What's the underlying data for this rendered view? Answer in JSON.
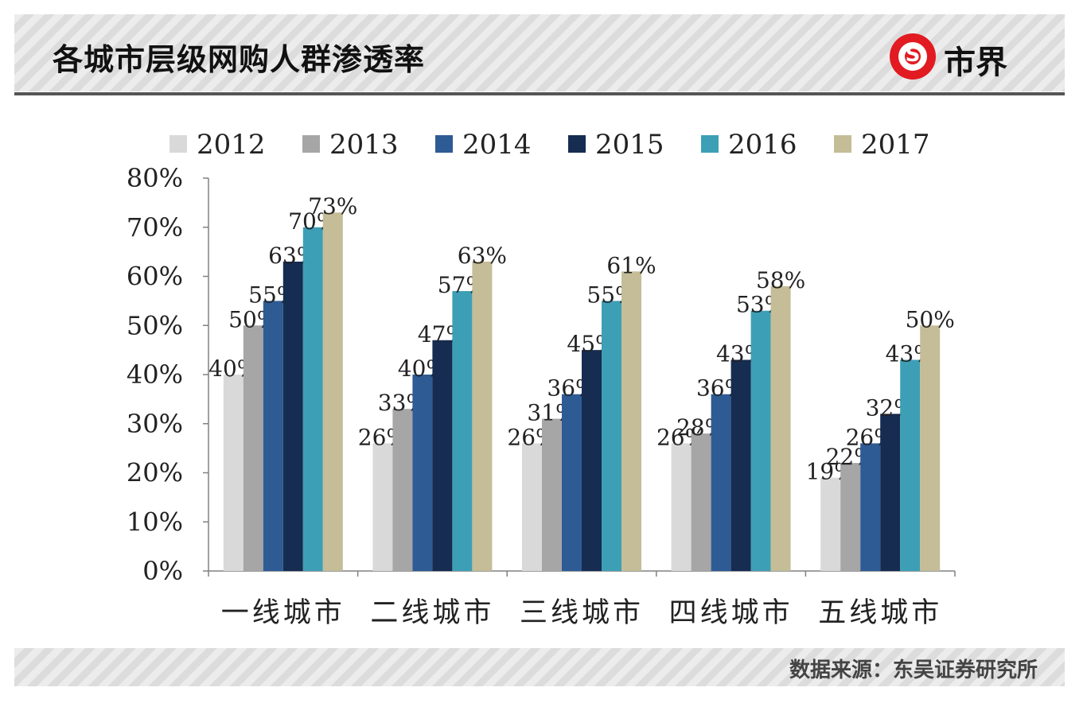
{
  "header": {
    "title": "各城市层级网购人群渗透率",
    "logo_text": "市界",
    "logo_mark": "S"
  },
  "footer": {
    "source": "数据来源：东吴证券研究所"
  },
  "colors": {
    "2012": "#d9d9d9",
    "2013": "#a6a6a6",
    "2014": "#2e5b94",
    "2015": "#162c51",
    "2016": "#3d9fb6",
    "2017": "#c4bd97",
    "logo_red": "#e21a22"
  },
  "chart_data": {
    "type": "bar",
    "categories": [
      "一线城市",
      "二线城市",
      "三线城市",
      "四线城市",
      "五线城市"
    ],
    "series": [
      {
        "name": "2012",
        "values": [
          40,
          26,
          26,
          26,
          19
        ]
      },
      {
        "name": "2013",
        "values": [
          50,
          33,
          31,
          28,
          22
        ]
      },
      {
        "name": "2014",
        "values": [
          55,
          40,
          36,
          36,
          26
        ]
      },
      {
        "name": "2015",
        "values": [
          63,
          47,
          45,
          43,
          32
        ]
      },
      {
        "name": "2016",
        "values": [
          70,
          57,
          55,
          53,
          43
        ]
      },
      {
        "name": "2017",
        "values": [
          73,
          63,
          61,
          58,
          50
        ]
      }
    ],
    "value_format": "%",
    "ylim": [
      0,
      80
    ],
    "yticks": [
      "0%",
      "10%",
      "20%",
      "30%",
      "40%",
      "50%",
      "60%",
      "70%",
      "80%"
    ],
    "legend": "top",
    "grid": false,
    "title": "",
    "xlabel": "",
    "ylabel": ""
  }
}
